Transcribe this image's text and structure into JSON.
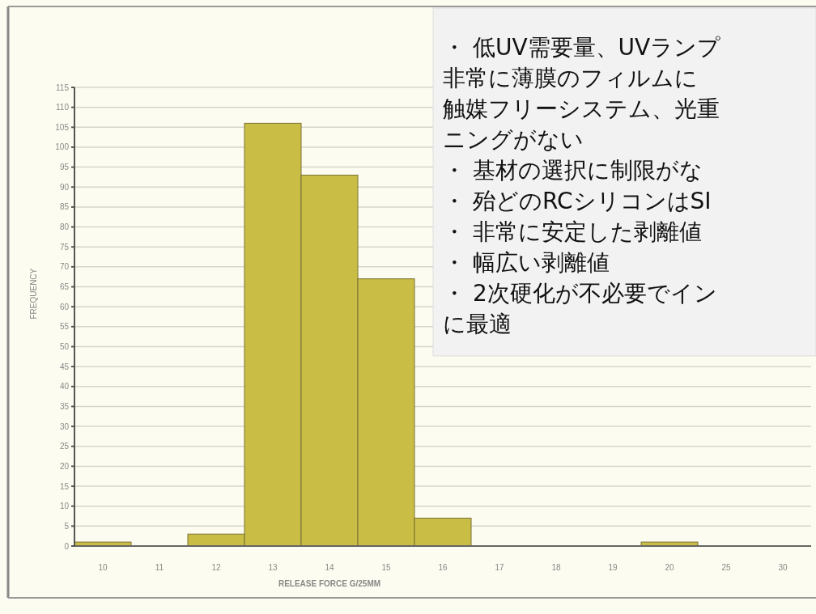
{
  "chart_data": {
    "type": "bar",
    "xlabel": "RELEASE FORCE G/25MM",
    "ylabel": "FREQUENCY",
    "categories": [
      "10",
      "11",
      "12",
      "13",
      "14",
      "15",
      "16",
      "17",
      "18",
      "19",
      "20",
      "25",
      "30"
    ],
    "values": [
      1,
      0,
      3,
      106,
      93,
      67,
      7,
      0,
      0,
      0,
      1,
      0,
      0
    ],
    "color": "#c9bd45",
    "ylim": [
      0,
      115
    ],
    "yticks": [
      0,
      5,
      10,
      15,
      20,
      25,
      30,
      35,
      40,
      45,
      50,
      55,
      60,
      65,
      70,
      75,
      80,
      85,
      90,
      95,
      100,
      105,
      110,
      115
    ],
    "grid": "y",
    "annotations": [
      "・ 低UV需要量、UVランプ",
      "非常に薄膜のフィルムに",
      "触媒フリーシステム、光重",
      "ニングがない",
      "・ 基材の選択に制限がな",
      "・ 殆どのRCシリコンはSI",
      "・ 非常に安定した剥離値",
      "・ 幅広い剥離値",
      "・ 2次硬化が不必要でイン",
      "に最適"
    ]
  }
}
